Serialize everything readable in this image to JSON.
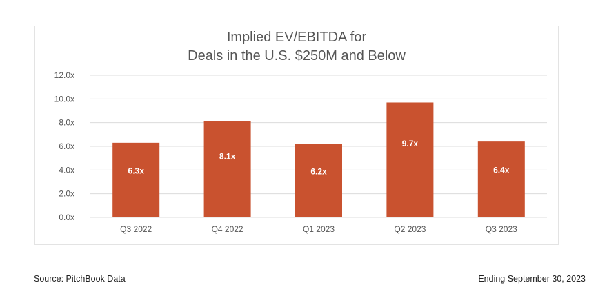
{
  "chart_data": {
    "type": "bar",
    "title_lines": [
      "Implied EV/EBITDA for",
      "Deals in the U.S. $250M and Below"
    ],
    "categories": [
      "Q3 2022",
      "Q4 2022",
      "Q1 2023",
      "Q2 2023",
      "Q3 2023"
    ],
    "values": [
      6.3,
      8.1,
      6.2,
      9.7,
      6.4
    ],
    "value_labels": [
      "6.3x",
      "8.1x",
      "6.2x",
      "9.7x",
      "6.4x"
    ],
    "y_ticks": [
      0,
      2,
      4,
      6,
      8,
      10,
      12
    ],
    "y_tick_labels": [
      "0.0x",
      "2.0x",
      "4.0x",
      "6.0x",
      "8.0x",
      "10.0x",
      "12.0x"
    ],
    "ylim": [
      0,
      12
    ],
    "xlabel": "",
    "ylabel": "",
    "grid": true,
    "bar_color": "#c9522f",
    "label_color": "#ffffff"
  },
  "footer": {
    "source": "Source: PitchBook Data",
    "date_note": "Ending September 30, 2023"
  }
}
